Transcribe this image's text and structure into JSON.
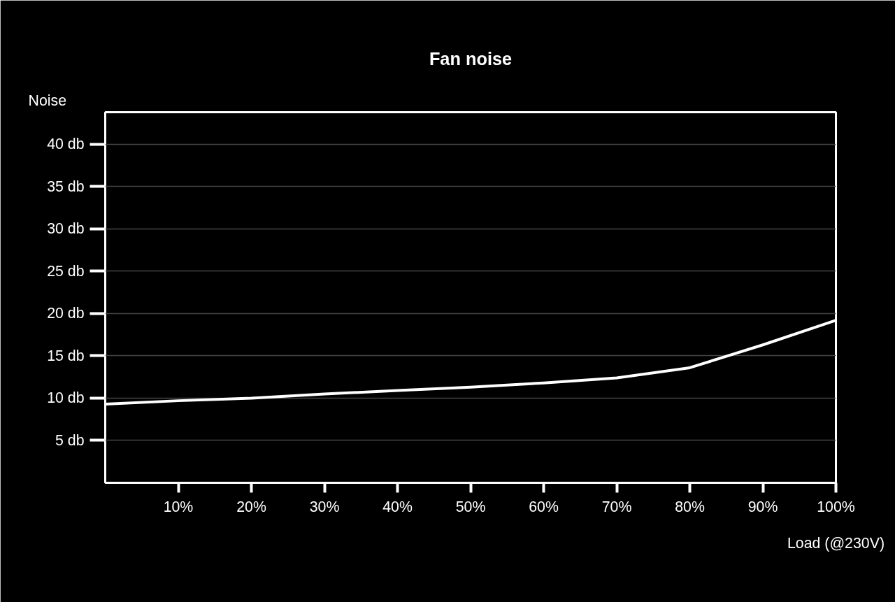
{
  "chart_data": {
    "type": "line",
    "title": "Fan noise",
    "xlabel": "Load (@230V)",
    "ylabel": "Noise",
    "x": [
      0,
      10,
      20,
      30,
      40,
      50,
      60,
      70,
      80,
      90,
      100
    ],
    "series": [
      {
        "color": "#ffffff",
        "values": [
          9.3,
          9.7,
          10.0,
          10.5,
          10.9,
          11.3,
          11.8,
          12.4,
          13.6,
          16.3,
          19.2
        ]
      }
    ],
    "xlim": [
      0,
      100
    ],
    "ylim": [
      0,
      43.8
    ],
    "xticks": [
      {
        "value": 10,
        "label": "10%"
      },
      {
        "value": 20,
        "label": "20%"
      },
      {
        "value": 30,
        "label": "30%"
      },
      {
        "value": 40,
        "label": "40%"
      },
      {
        "value": 50,
        "label": "50%"
      },
      {
        "value": 60,
        "label": "60%"
      },
      {
        "value": 70,
        "label": "70%"
      },
      {
        "value": 80,
        "label": "80%"
      },
      {
        "value": 90,
        "label": "90%"
      },
      {
        "value": 100,
        "label": "100%"
      }
    ],
    "yticks": [
      {
        "value": 5,
        "label": "5 db"
      },
      {
        "value": 10,
        "label": "10 db"
      },
      {
        "value": 15,
        "label": "15 db"
      },
      {
        "value": 20,
        "label": "20 db"
      },
      {
        "value": 25,
        "label": "25 db"
      },
      {
        "value": 30,
        "label": "30 db"
      },
      {
        "value": 35,
        "label": "35 db"
      },
      {
        "value": 40,
        "label": "40 db"
      }
    ],
    "grid": "y",
    "marker": "none",
    "line_style": "solid"
  }
}
